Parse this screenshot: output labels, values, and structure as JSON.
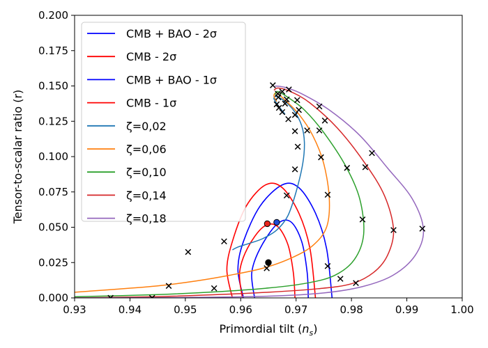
{
  "chart_data": {
    "type": "line",
    "xlabel_main": "Primordial tilt (",
    "xlabel_sym": "n",
    "xlabel_sub": "s",
    "xlabel_close": ")",
    "ylabel": "Tensor-to-scalar ratio (r)",
    "xlim": [
      0.93,
      1.0
    ],
    "ylim": [
      0.0,
      0.2
    ],
    "xticks": [
      "0.93",
      "0.94",
      "0.95",
      "0.96",
      "0.97",
      "0.98",
      "0.99",
      "1.00"
    ],
    "yticks": [
      "0.000",
      "0.025",
      "0.050",
      "0.075",
      "0.100",
      "0.125",
      "0.150",
      "0.175",
      "0.200"
    ],
    "legend_position": "top-left",
    "legend": [
      {
        "label": "CMB + BAO - 2σ",
        "color": "#0000ff"
      },
      {
        "label": "CMB - 2σ",
        "color": "#ff0000"
      },
      {
        "label": "CMB + BAO - 1σ",
        "color": "#0000ff"
      },
      {
        "label": "CMB - 1σ",
        "color": "#ff0000"
      },
      {
        "label": "ζ=0,02",
        "color": "#1f77b4"
      },
      {
        "label": "ζ=0,06",
        "color": "#ff7f0e"
      },
      {
        "label": "ζ=0,10",
        "color": "#2ca02c"
      },
      {
        "label": "ζ=0,14",
        "color": "#d62728"
      },
      {
        "label": "ζ=0,18",
        "color": "#9467bd"
      }
    ],
    "contours": [
      {
        "name": "CMB + BAO - 2σ",
        "color": "#0000ff",
        "points": [
          [
            0.9605,
            0.0
          ],
          [
            0.9595,
            0.02
          ],
          [
            0.9605,
            0.04
          ],
          [
            0.9635,
            0.065
          ],
          [
            0.9675,
            0.08
          ],
          [
            0.9705,
            0.078
          ],
          [
            0.9735,
            0.06
          ],
          [
            0.9755,
            0.035
          ],
          [
            0.9765,
            0.0
          ]
        ]
      },
      {
        "name": "CMB - 2σ",
        "color": "#ff0000",
        "points": [
          [
            0.9585,
            0.0
          ],
          [
            0.9575,
            0.02
          ],
          [
            0.9585,
            0.04
          ],
          [
            0.961,
            0.065
          ],
          [
            0.9645,
            0.08
          ],
          [
            0.9675,
            0.078
          ],
          [
            0.9705,
            0.06
          ],
          [
            0.9725,
            0.035
          ],
          [
            0.9735,
            0.0
          ]
        ]
      },
      {
        "name": "CMB + BAO - 1σ",
        "color": "#0000ff",
        "points": [
          [
            0.9625,
            0.0
          ],
          [
            0.962,
            0.018
          ],
          [
            0.9635,
            0.035
          ],
          [
            0.9665,
            0.052
          ],
          [
            0.969,
            0.054
          ],
          [
            0.971,
            0.04
          ],
          [
            0.972,
            0.018
          ],
          [
            0.9722,
            0.0
          ]
        ]
      },
      {
        "name": "CMB - 1σ",
        "color": "#ff0000",
        "points": [
          [
            0.9603,
            0.0
          ],
          [
            0.9598,
            0.018
          ],
          [
            0.9612,
            0.035
          ],
          [
            0.964,
            0.05
          ],
          [
            0.9665,
            0.051
          ],
          [
            0.9685,
            0.038
          ],
          [
            0.9695,
            0.018
          ],
          [
            0.9698,
            0.0
          ]
        ]
      }
    ],
    "best_fit_points": [
      {
        "x": 0.9648,
        "y": 0.0525,
        "color": "#e8261e"
      },
      {
        "x": 0.9665,
        "y": 0.0535,
        "color": "#1f4bd6"
      },
      {
        "x": 0.965,
        "y": 0.025,
        "color": "#000000"
      }
    ],
    "series": [
      {
        "name": "ζ=0,02",
        "color": "#1f77b4",
        "points": [
          [
            0.9585,
            0.034
          ],
          [
            0.9595,
            0.036
          ],
          [
            0.9615,
            0.0385
          ],
          [
            0.964,
            0.042
          ],
          [
            0.9665,
            0.048
          ],
          [
            0.9685,
            0.058
          ],
          [
            0.97,
            0.075
          ],
          [
            0.9712,
            0.095
          ],
          [
            0.9715,
            0.11
          ],
          [
            0.971,
            0.122
          ],
          [
            0.9697,
            0.132
          ],
          [
            0.968,
            0.139
          ],
          [
            0.9665,
            0.1425
          ],
          [
            0.966,
            0.141
          ],
          [
            0.9668,
            0.136
          ],
          [
            0.968,
            0.13
          ]
        ],
        "markers": [
          [
            0.9505,
            0.0325
          ],
          [
            0.957,
            0.04
          ],
          [
            0.9683,
            0.0725
          ],
          [
            0.9698,
            0.091
          ],
          [
            0.9703,
            0.107
          ],
          [
            0.9698,
            0.118
          ],
          [
            0.9686,
            0.1265
          ],
          [
            0.9675,
            0.1315
          ],
          [
            0.9669,
            0.1345
          ],
          [
            0.9665,
            0.137
          ]
        ]
      },
      {
        "name": "ζ=0,06",
        "color": "#ff7f0e",
        "points": [
          [
            0.93,
            0.004
          ],
          [
            0.937,
            0.006
          ],
          [
            0.945,
            0.0085
          ],
          [
            0.952,
            0.012
          ],
          [
            0.958,
            0.016
          ],
          [
            0.964,
            0.021
          ],
          [
            0.969,
            0.028
          ],
          [
            0.973,
            0.037
          ],
          [
            0.9755,
            0.05
          ],
          [
            0.976,
            0.07
          ],
          [
            0.975,
            0.095
          ],
          [
            0.973,
            0.115
          ],
          [
            0.9705,
            0.13
          ],
          [
            0.968,
            0.14
          ],
          [
            0.9665,
            0.145
          ],
          [
            0.966,
            0.143
          ],
          [
            0.9665,
            0.139
          ]
        ],
        "markers": [
          [
            0.947,
            0.0085
          ],
          [
            0.9647,
            0.021
          ],
          [
            0.9757,
            0.073
          ],
          [
            0.9745,
            0.0995
          ],
          [
            0.972,
            0.1185
          ],
          [
            0.9698,
            0.1295
          ],
          [
            0.968,
            0.1375
          ],
          [
            0.9668,
            0.142
          ]
        ]
      },
      {
        "name": "ζ=0,10",
        "color": "#2ca02c",
        "points": [
          [
            0.93,
            0.0008
          ],
          [
            0.944,
            0.0022
          ],
          [
            0.955,
            0.0042
          ],
          [
            0.965,
            0.007
          ],
          [
            0.972,
            0.0105
          ],
          [
            0.977,
            0.016
          ],
          [
            0.9805,
            0.027
          ],
          [
            0.9822,
            0.045
          ],
          [
            0.9815,
            0.07
          ],
          [
            0.979,
            0.093
          ],
          [
            0.975,
            0.117
          ],
          [
            0.9715,
            0.133
          ],
          [
            0.9685,
            0.142
          ],
          [
            0.9667,
            0.146
          ],
          [
            0.9662,
            0.144
          ]
        ],
        "markers": [
          [
            0.9552,
            0.0068
          ],
          [
            0.9757,
            0.0225
          ],
          [
            0.982,
            0.0555
          ],
          [
            0.9792,
            0.092
          ],
          [
            0.9742,
            0.1185
          ],
          [
            0.9705,
            0.133
          ],
          [
            0.9683,
            0.1405
          ],
          [
            0.9667,
            0.1445
          ]
        ]
      },
      {
        "name": "ζ=0,14",
        "color": "#d62728",
        "points": [
          [
            0.93,
            0.0
          ],
          [
            0.944,
            0.0008
          ],
          [
            0.955,
            0.0022
          ],
          [
            0.965,
            0.004
          ],
          [
            0.974,
            0.0065
          ],
          [
            0.98,
            0.01
          ],
          [
            0.984,
            0.018
          ],
          [
            0.9865,
            0.03
          ],
          [
            0.9876,
            0.048
          ],
          [
            0.986,
            0.072
          ],
          [
            0.9825,
            0.095
          ],
          [
            0.9775,
            0.12
          ],
          [
            0.9725,
            0.138
          ],
          [
            0.969,
            0.146
          ],
          [
            0.9668,
            0.1485
          ],
          [
            0.966,
            0.147
          ]
        ],
        "markers": [
          [
            0.9365,
            0.0
          ],
          [
            0.978,
            0.0135
          ],
          [
            0.9876,
            0.048
          ],
          [
            0.9825,
            0.0925
          ],
          [
            0.9752,
            0.1255
          ],
          [
            0.9702,
            0.14
          ],
          [
            0.9675,
            0.146
          ]
        ]
      },
      {
        "name": "ζ=0,18",
        "color": "#9467bd",
        "points": [
          [
            0.93,
            0.0
          ],
          [
            0.95,
            0.0003
          ],
          [
            0.965,
            0.0012
          ],
          [
            0.975,
            0.0035
          ],
          [
            0.982,
            0.008
          ],
          [
            0.9875,
            0.016
          ],
          [
            0.9915,
            0.03
          ],
          [
            0.993,
            0.048
          ],
          [
            0.991,
            0.07
          ],
          [
            0.9865,
            0.092
          ],
          [
            0.9815,
            0.115
          ],
          [
            0.976,
            0.133
          ],
          [
            0.971,
            0.1445
          ],
          [
            0.968,
            0.149
          ],
          [
            0.9662,
            0.15
          ]
        ],
        "markers": [
          [
            0.944,
            0.0
          ],
          [
            0.9808,
            0.0105
          ],
          [
            0.9928,
            0.049
          ],
          [
            0.9837,
            0.1025
          ],
          [
            0.9742,
            0.1355
          ],
          [
            0.9687,
            0.1475
          ],
          [
            0.9658,
            0.1505
          ]
        ]
      }
    ]
  }
}
